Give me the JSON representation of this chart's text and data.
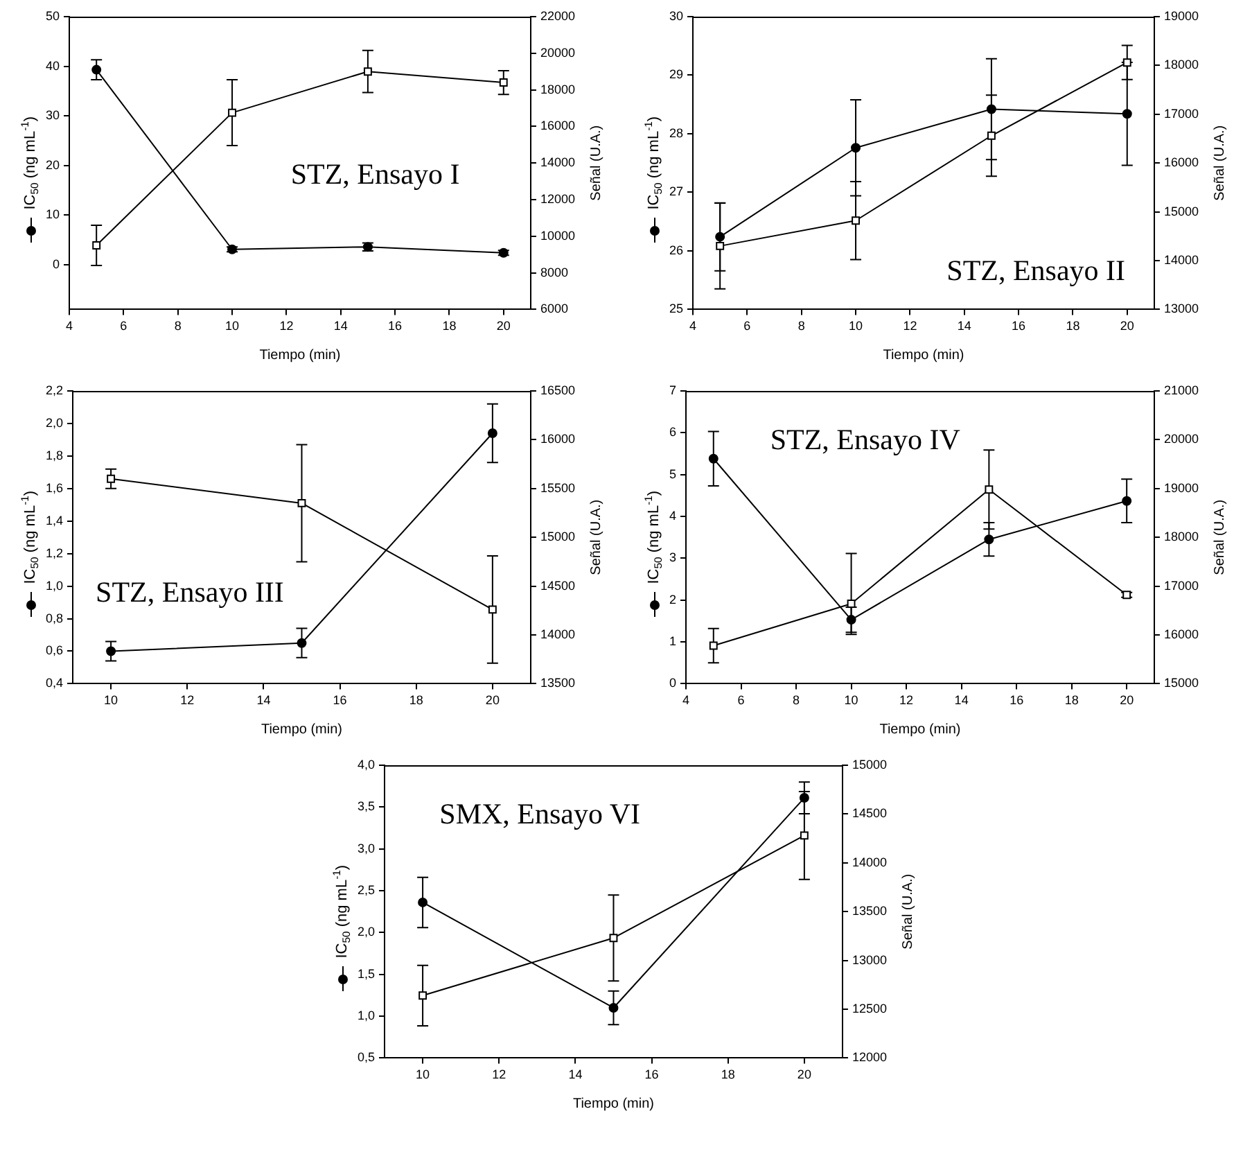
{
  "chart_data": [
    {
      "type": "line",
      "xlabel": "Tiempo (min)",
      "ylabel": "IC$_{50}$ (ng mL$^{-1}$)",
      "y2label": "Señal (U.A.)",
      "annotations": [
        "STZ, Ensayo I"
      ],
      "grid": false,
      "legend": false,
      "line_style": "solid",
      "xlim": [
        4,
        21
      ],
      "xticks": [
        4,
        6,
        8,
        10,
        12,
        14,
        16,
        18,
        20
      ],
      "ylim": [
        -9,
        50
      ],
      "yticks": [
        0,
        10,
        20,
        30,
        40,
        50
      ],
      "y2lim": [
        6000,
        22000
      ],
      "y2ticks": [
        6000,
        8000,
        10000,
        12000,
        14000,
        16000,
        18000,
        20000,
        22000
      ],
      "x": [
        5,
        10,
        15,
        20
      ],
      "series": [
        {
          "color": "#000000",
          "marker": "circle",
          "values": [
            39.3,
            3.1,
            3.6,
            2.4
          ],
          "errors": [
            2,
            0.5,
            0.8,
            0.5
          ]
        },
        {
          "color": "#000000",
          "marker": "square",
          "axis": "y2",
          "values": [
            9500,
            16750,
            19000,
            18400
          ],
          "errors": [
            1100,
            1800,
            1150,
            650
          ]
        }
      ]
    },
    {
      "type": "line",
      "xlabel": "Tiempo (min)",
      "ylabel": "IC$_{50}$ (ng mL$^{-1}$)",
      "y2label": "Señal (U.A.)",
      "annotations": [
        "STZ, Ensayo II"
      ],
      "grid": false,
      "legend": false,
      "line_style": "solid",
      "xlim": [
        4,
        21
      ],
      "xticks": [
        4,
        6,
        8,
        10,
        12,
        14,
        16,
        18,
        20
      ],
      "ylim": [
        25,
        30
      ],
      "yticks": [
        25,
        26,
        27,
        28,
        29,
        30
      ],
      "y2lim": [
        13000,
        19000
      ],
      "y2ticks": [
        13000,
        14000,
        15000,
        16000,
        17000,
        18000,
        19000
      ],
      "x": [
        5,
        10,
        15,
        20
      ],
      "series": [
        {
          "color": "#000000",
          "marker": "circle",
          "values": [
            26.24,
            27.76,
            28.42,
            28.34
          ],
          "errors": [
            0.58,
            0.82,
            0.86,
            0.88
          ]
        },
        {
          "color": "#000000",
          "marker": "square",
          "axis": "y2",
          "values": [
            14300,
            14820,
            16560,
            18060
          ],
          "errors": [
            880,
            800,
            830,
            350
          ]
        }
      ]
    },
    {
      "type": "line",
      "xlabel": "Tiempo (min)",
      "ylabel": "IC$_{50}$ (ng mL$^{-1}$)",
      "y2label": "Señal (U.A.)",
      "annotations": [
        "STZ, Ensayo III"
      ],
      "grid": false,
      "legend": false,
      "line_style": "solid",
      "xlim": [
        9,
        21
      ],
      "xticks": [
        10,
        12,
        14,
        16,
        18,
        20
      ],
      "ylim": [
        0.4,
        2.2
      ],
      "yticks": [
        {
          "value": 0.4,
          "label": "0,4"
        },
        {
          "value": 0.6,
          "label": "0,6"
        },
        {
          "value": 0.8,
          "label": "0,8"
        },
        {
          "value": 1.0,
          "label": "1,0"
        },
        {
          "value": 1.2,
          "label": "1,2"
        },
        {
          "value": 1.4,
          "label": "1,4"
        },
        {
          "value": 1.6,
          "label": "1,6"
        },
        {
          "value": 1.8,
          "label": "1,8"
        },
        {
          "value": 2.0,
          "label": "2,0"
        },
        {
          "value": 2.2,
          "label": "2,2"
        }
      ],
      "y2lim": [
        13500,
        16500
      ],
      "y2ticks": [
        13500,
        14000,
        14500,
        15000,
        15500,
        16000,
        16500
      ],
      "x": [
        10,
        15,
        20
      ],
      "series": [
        {
          "color": "#000000",
          "marker": "circle",
          "values": [
            0.6,
            0.65,
            1.94
          ],
          "errors": [
            0.06,
            0.09,
            0.18
          ]
        },
        {
          "color": "#000000",
          "marker": "square",
          "axis": "y2",
          "values": [
            15600,
            15350,
            14260
          ],
          "errors": [
            100,
            600,
            550
          ]
        }
      ]
    },
    {
      "type": "line",
      "xlabel": "Tiempo (min)",
      "ylabel": "IC$_{50}$ (ng mL$^{-1}$)",
      "y2label": "Señal (U.A.)",
      "annotations": [
        "STZ, Ensayo IV"
      ],
      "grid": false,
      "legend": false,
      "line_style": "solid",
      "xlim": [
        4,
        21
      ],
      "xticks": [
        4,
        6,
        8,
        10,
        12,
        14,
        16,
        18,
        20
      ],
      "ylim": [
        0,
        7
      ],
      "yticks": [
        0,
        1,
        2,
        3,
        4,
        5,
        6,
        7
      ],
      "y2lim": [
        15000,
        21000
      ],
      "y2ticks": [
        15000,
        16000,
        17000,
        18000,
        19000,
        20000,
        21000
      ],
      "x": [
        5,
        10,
        15,
        20
      ],
      "series": [
        {
          "color": "#000000",
          "marker": "circle",
          "values": [
            5.38,
            1.53,
            3.45,
            4.37
          ],
          "errors": [
            0.65,
            0.3,
            0.4,
            0.52
          ]
        },
        {
          "color": "#000000",
          "marker": "square",
          "axis": "y2",
          "values": [
            15780,
            16640,
            18980,
            16820
          ],
          "errors": [
            350,
            [
              16010,
              17670
            ],
            810,
            50
          ]
        }
      ]
    },
    {
      "type": "line",
      "xlabel": "Tiempo (min)",
      "ylabel": "IC$_{50}$ (ng mL$^{-1}$)",
      "y2label": "Señal (U.A.)",
      "annotations": [
        "SMX, Ensayo VI"
      ],
      "grid": false,
      "legend": false,
      "line_style": "solid",
      "xlim": [
        9,
        21
      ],
      "xticks": [
        10,
        12,
        14,
        16,
        18,
        20
      ],
      "ylim": [
        0.5,
        4.0
      ],
      "yticks": [
        {
          "value": 0.5,
          "label": "0,5"
        },
        {
          "value": 1.0,
          "label": "1,0"
        },
        {
          "value": 1.5,
          "label": "1,5"
        },
        {
          "value": 2.0,
          "label": "2,0"
        },
        {
          "value": 2.5,
          "label": "2,5"
        },
        {
          "value": 3.0,
          "label": "3,0"
        },
        {
          "value": 3.5,
          "label": "3,5"
        },
        {
          "value": 4.0,
          "label": "4,0"
        }
      ],
      "y2lim": [
        12000,
        15000
      ],
      "y2ticks": [
        12000,
        12500,
        13000,
        13500,
        14000,
        14500,
        15000
      ],
      "x": [
        10,
        15,
        20
      ],
      "series": [
        {
          "color": "#000000",
          "marker": "circle",
          "values": [
            2.36,
            1.1,
            3.61
          ],
          "errors": [
            0.3,
            0.2,
            0.19
          ]
        },
        {
          "color": "#000000",
          "marker": "square",
          "axis": "y2",
          "values": [
            12640,
            13230,
            14280
          ],
          "errors": [
            310,
            440,
            450
          ]
        }
      ]
    }
  ]
}
